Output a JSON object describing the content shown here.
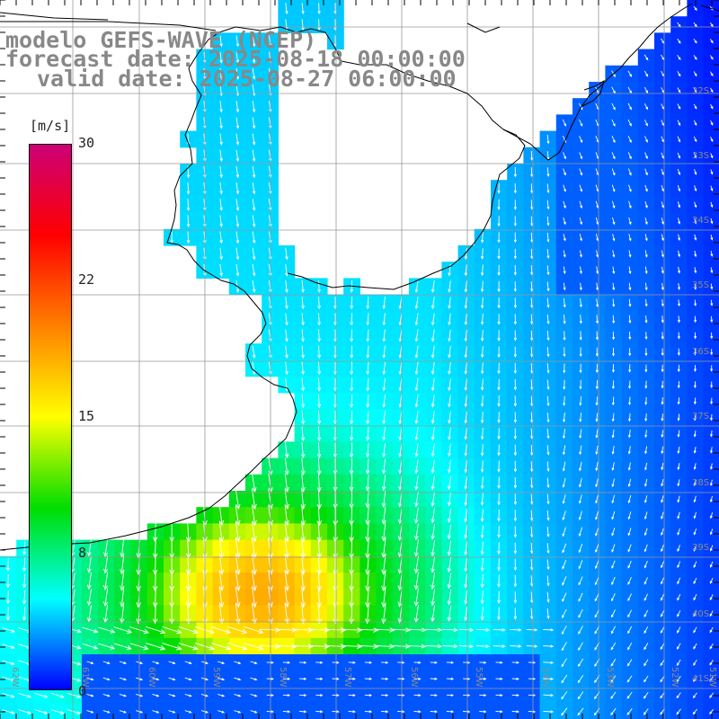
{
  "title": {
    "line1": "modelo GEFS-WAVE (NCEP)",
    "line2": "forecast date: 2025-08-18 00:00:00",
    "line3": "valid date: 2025-08-27 06:00:00"
  },
  "colorbar": {
    "unit": "[m/s]",
    "ticks": [
      "30",
      "22",
      "15",
      "8",
      "0"
    ],
    "values": [
      30,
      22,
      15,
      8,
      0
    ],
    "colors": [
      "#0000ff",
      "#00ffff",
      "#00dd00",
      "#ffff00",
      "#ff8000",
      "#ff0000",
      "#cc0077"
    ]
  },
  "lat_labels": [
    "32S",
    "33S",
    "34S",
    "35S",
    "36S",
    "37S",
    "38S",
    "39S",
    "40S",
    "41S"
  ],
  "lon_labels": [
    "62W",
    "61W",
    "60W",
    "59W",
    "58W",
    "57W",
    "56W",
    "55W",
    "54W",
    "53W",
    "52W",
    "51W"
  ],
  "colors": {
    "land": "#ffffff",
    "coast": "#000000",
    "grid": "#999999",
    "vector": "#ffffff"
  }
}
